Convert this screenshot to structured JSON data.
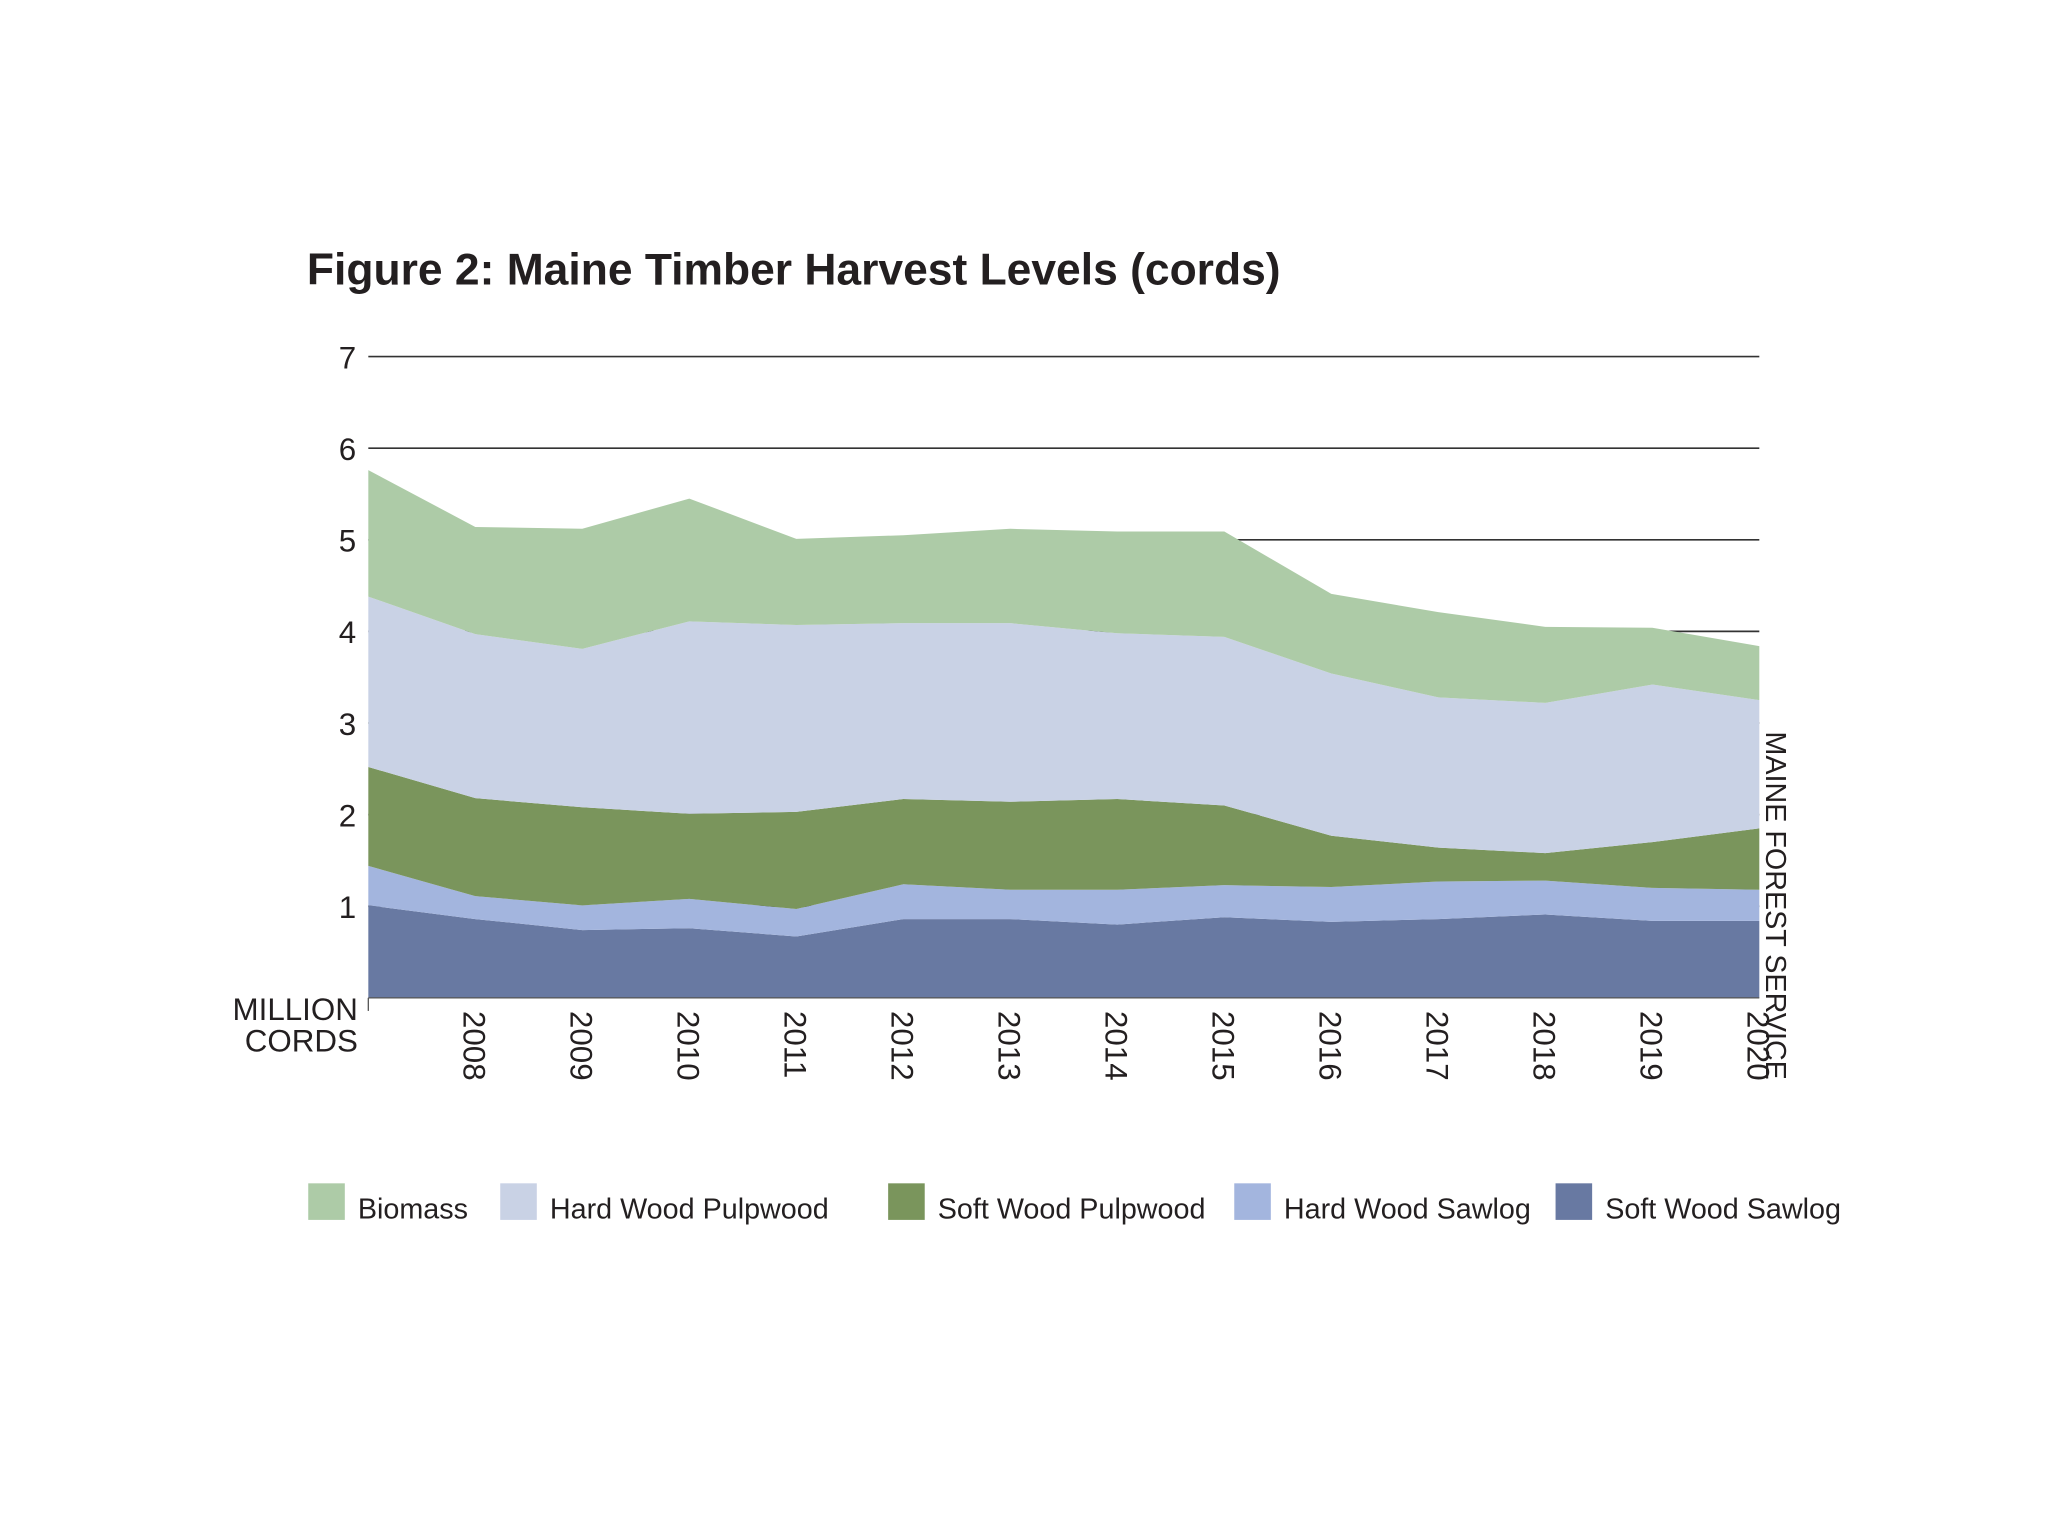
{
  "chart_data": {
    "type": "stacked_area",
    "title": "Figure 2: Maine Timber Harvest Levels (cords)",
    "y_label": [
      "MILLION",
      "CORDS"
    ],
    "source": "MAINE FOREST SERVICE",
    "categories": [
      null,
      "2008",
      "2009",
      "2010",
      "2011",
      "2012",
      "2013",
      "2014",
      "2015",
      "2016",
      "2017",
      "2018",
      "2019",
      "2020"
    ],
    "series": [
      {
        "name": "Biomass",
        "color": "#adcba7",
        "values": [
          1.38,
          1.17,
          1.31,
          1.34,
          0.94,
          0.96,
          1.03,
          1.11,
          1.15,
          0.87,
          0.93,
          0.83,
          0.62,
          0.59
        ]
      },
      {
        "name": "Hard Wood Pulpwood",
        "color": "#c9d2e5",
        "values": [
          1.86,
          1.79,
          1.73,
          2.1,
          2.04,
          1.92,
          1.95,
          1.81,
          1.84,
          1.77,
          1.64,
          1.64,
          1.72,
          1.4
        ]
      },
      {
        "name": "Soft Wood Pulpwood",
        "color": "#7a955c",
        "values": [
          1.08,
          1.07,
          1.07,
          0.93,
          1.06,
          0.93,
          0.96,
          0.99,
          0.87,
          0.56,
          0.37,
          0.3,
          0.5,
          0.67
        ]
      },
      {
        "name": "Hard Wood Sawlog",
        "color": "#a3b5de",
        "values": [
          0.43,
          0.25,
          0.27,
          0.32,
          0.3,
          0.38,
          0.32,
          0.38,
          0.35,
          0.38,
          0.41,
          0.37,
          0.36,
          0.34
        ]
      },
      {
        "name": "Soft Wood Sawlog",
        "color": "#6879a2",
        "values": [
          1.01,
          0.86,
          0.74,
          0.76,
          0.67,
          0.86,
          0.86,
          0.8,
          0.88,
          0.83,
          0.86,
          0.91,
          0.84,
          0.84
        ]
      }
    ],
    "ylim": [
      0,
      7
    ],
    "yticks": [
      1,
      2,
      3,
      4,
      5,
      6,
      7
    ],
    "grid": true
  }
}
